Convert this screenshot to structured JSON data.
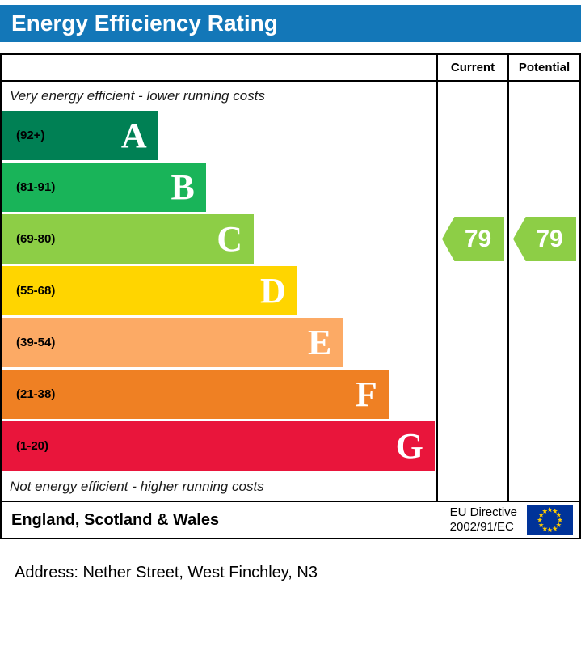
{
  "title": "Energy Efficiency Rating",
  "columns": {
    "current": "Current",
    "potential": "Potential"
  },
  "chart_data": {
    "type": "bar",
    "title": "Energy Efficiency Rating",
    "top_note": "Very energy efficient - lower running costs",
    "bottom_note": "Not energy efficient - higher running costs",
    "bands": [
      {
        "letter": "A",
        "range": "(92+)",
        "min": 92,
        "max": 100,
        "color": "#008054",
        "width_pct": 36
      },
      {
        "letter": "B",
        "range": "(81-91)",
        "min": 81,
        "max": 91,
        "color": "#19b459",
        "width_pct": 47
      },
      {
        "letter": "C",
        "range": "(69-80)",
        "min": 69,
        "max": 80,
        "color": "#8dce46",
        "width_pct": 58
      },
      {
        "letter": "D",
        "range": "(55-68)",
        "min": 55,
        "max": 68,
        "color": "#ffd500",
        "width_pct": 68
      },
      {
        "letter": "E",
        "range": "(39-54)",
        "min": 39,
        "max": 54,
        "color": "#fcaa65",
        "width_pct": 78.5
      },
      {
        "letter": "F",
        "range": "(21-38)",
        "min": 21,
        "max": 38,
        "color": "#ef8023",
        "width_pct": 89
      },
      {
        "letter": "G",
        "range": "(1-20)",
        "min": 1,
        "max": 20,
        "color": "#e9153b",
        "width_pct": 99.6
      }
    ],
    "current": {
      "value": 79,
      "band": "C",
      "band_index": 2,
      "color": "#8dce46"
    },
    "potential": {
      "value": 79,
      "band": "C",
      "band_index": 2,
      "color": "#8dce46"
    }
  },
  "footer": {
    "region": "England, Scotland & Wales",
    "directive": [
      "EU Directive",
      "2002/91/EC"
    ]
  },
  "address": "Address: Nether Street, West Finchley, N3",
  "colors": {
    "header_bg": "#1377b8",
    "header_text": "#ffffff",
    "flag_bg": "#003399",
    "flag_star": "#ffcc00"
  }
}
